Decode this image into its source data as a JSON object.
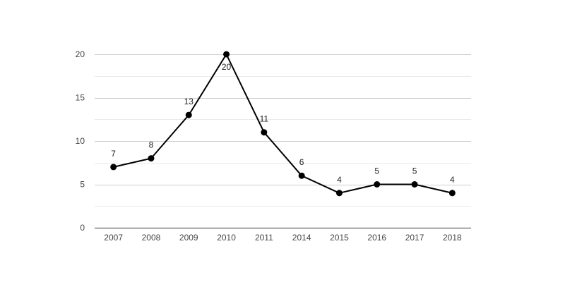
{
  "chart_data": {
    "type": "line",
    "categories": [
      "2007",
      "2008",
      "2009",
      "2010",
      "2011",
      "2014",
      "2015",
      "2016",
      "2017",
      "2018"
    ],
    "series": [
      {
        "values": [
          7,
          8,
          13,
          20,
          11,
          6,
          4,
          5,
          5,
          4
        ]
      }
    ],
    "ylim": [
      0,
      20
    ],
    "yticks": [
      0,
      5,
      10,
      15,
      20
    ],
    "grid": true,
    "minor_grid": true,
    "legend": "none",
    "data_labels": true,
    "line_color": "#000000",
    "grid_color": "#cccccc",
    "minor_grid_color": "#ebebeb"
  }
}
